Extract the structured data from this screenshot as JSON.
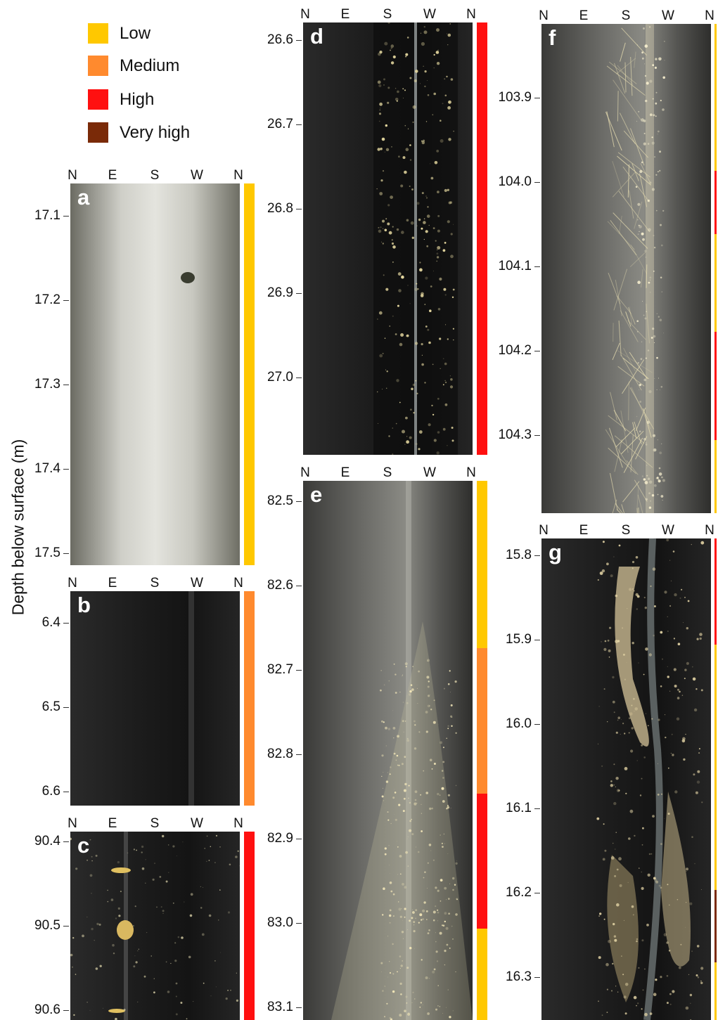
{
  "legend": [
    {
      "label": "Low",
      "color": "#FFC800"
    },
    {
      "label": "Medium",
      "color": "#FF8A2E"
    },
    {
      "label": "High",
      "color": "#FF1010"
    },
    {
      "label": "Very high",
      "color": "#7A2A08"
    }
  ],
  "y_axis_title": "Depth below surface (m)",
  "compass_labels": [
    "N",
    "E",
    "S",
    "W",
    "N"
  ],
  "panels": [
    {
      "letter": "a",
      "depths": [
        "17.1",
        "17.2",
        "17.3",
        "17.4",
        "17.5"
      ],
      "risk": [
        {
          "level": "Low",
          "fraction": 1.0
        }
      ]
    },
    {
      "letter": "b",
      "depths": [
        "6.4",
        "6.5",
        "6.6"
      ],
      "risk": [
        {
          "level": "Medium",
          "fraction": 1.0
        }
      ]
    },
    {
      "letter": "c",
      "depths": [
        "90.4",
        "90.5",
        "90.6"
      ],
      "risk": [
        {
          "level": "High",
          "fraction": 1.0
        }
      ]
    },
    {
      "letter": "d",
      "depths": [
        "26.6",
        "26.7",
        "26.8",
        "26.9",
        "27.0"
      ],
      "risk": [
        {
          "level": "High",
          "fraction": 1.0
        }
      ]
    },
    {
      "letter": "e",
      "depths": [
        "82.5",
        "82.6",
        "82.7",
        "82.8",
        "82.9",
        "83.0",
        "83.1"
      ],
      "risk": [
        {
          "level": "Low",
          "fraction": 0.31
        },
        {
          "level": "Medium",
          "fraction": 0.27
        },
        {
          "level": "High",
          "fraction": 0.25
        },
        {
          "level": "Low",
          "fraction": 0.17
        }
      ]
    },
    {
      "letter": "f",
      "depths": [
        "103.9",
        "104.0",
        "104.1",
        "104.2",
        "104.3"
      ],
      "risk": [
        {
          "level": "Low",
          "fraction": 0.3
        },
        {
          "level": "High",
          "fraction": 0.13
        },
        {
          "level": "Low",
          "fraction": 0.2
        },
        {
          "level": "High",
          "fraction": 0.22
        },
        {
          "level": "Low",
          "fraction": 0.15
        }
      ]
    },
    {
      "letter": "g",
      "depths": [
        "15.8",
        "15.9",
        "16.0",
        "16.1",
        "16.2",
        "16.3"
      ],
      "risk": [
        {
          "level": "High",
          "fraction": 0.22
        },
        {
          "level": "Low",
          "fraction": 0.51
        },
        {
          "level": "Very high",
          "fraction": 0.15
        },
        {
          "level": "Low",
          "fraction": 0.12
        }
      ]
    }
  ]
}
